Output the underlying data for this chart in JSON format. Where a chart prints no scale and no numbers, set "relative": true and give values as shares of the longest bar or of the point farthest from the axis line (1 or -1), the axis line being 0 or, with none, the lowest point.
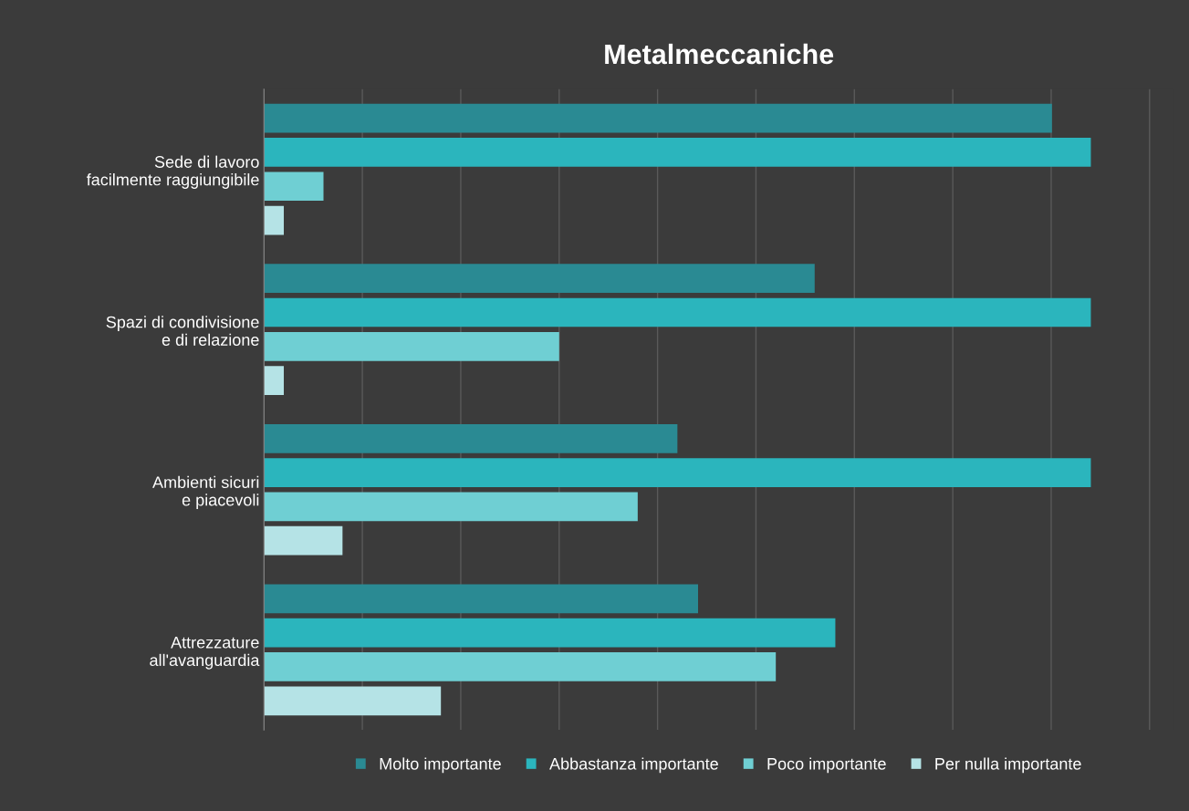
{
  "chart_data": {
    "type": "bar",
    "title": "Metalmeccaniche",
    "orientation": "horizontal",
    "relative": true,
    "grid": "x",
    "legend": "bottom",
    "categories": [
      "Sede di lavoro\nfacilmente raggiungibile",
      "Spazi di condivisione\ne di relazione",
      "Ambienti sicuri\ne piacevoli",
      "Attrezzature\nall'avanguardia"
    ],
    "series": [
      {
        "name": "Molto importante",
        "color": "#2a8a93",
        "values": [
          0.953,
          0.666,
          0.5,
          0.525
        ]
      },
      {
        "name": "Abbastanza importante",
        "color": "#2bb5bd",
        "values": [
          1.0,
          1.0,
          1.0,
          0.691
        ]
      },
      {
        "name": "Poco importante",
        "color": "#6fcfd3",
        "values": [
          0.072,
          0.357,
          0.452,
          0.619
        ]
      },
      {
        "name": "Per nulla importante",
        "color": "#b5e3e6",
        "values": [
          0.024,
          0.024,
          0.095,
          0.214
        ]
      }
    ]
  }
}
